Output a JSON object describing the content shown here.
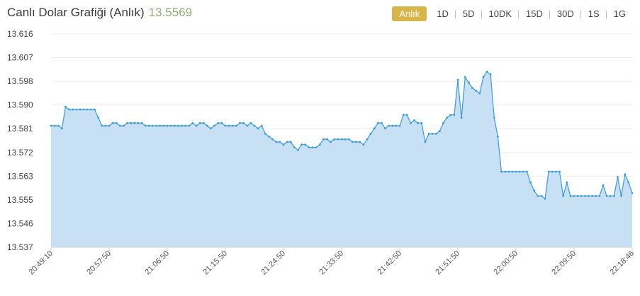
{
  "header": {
    "title": "Canlı Dolar Grafiği (Anlık)",
    "price": "13.5569"
  },
  "tabs": [
    {
      "label": "Anlık",
      "active": true
    },
    {
      "label": "1D",
      "active": false
    },
    {
      "label": "5D",
      "active": false
    },
    {
      "label": "10DK",
      "active": false
    },
    {
      "label": "15D",
      "active": false
    },
    {
      "label": "30D",
      "active": false
    },
    {
      "label": "1S",
      "active": false
    },
    {
      "label": "1G",
      "active": false
    }
  ],
  "colors": {
    "line": "#3a9ad9",
    "fill": "#c7e0f4",
    "active_tab": "#d8b54a",
    "price": "#8fae6d"
  },
  "chart_data": {
    "type": "area",
    "title": "",
    "xlabel": "",
    "ylabel": "",
    "ylim": [
      13.537,
      13.616
    ],
    "y_ticks": [
      "13.616",
      "13.607",
      "13.598",
      "13.590",
      "13.581",
      "13.572",
      "13.563",
      "13.555",
      "13.546",
      "13.537"
    ],
    "x_ticks": [
      "20:49:10",
      "20:57:50",
      "21:06:50",
      "21:15:50",
      "21:24:50",
      "21:33:50",
      "21:42:50",
      "21:51:50",
      "22:00:50",
      "22:09:50",
      "22:18:46"
    ],
    "grid": true,
    "series": [
      {
        "values": [
          13.582,
          13.582,
          13.582,
          13.581,
          13.589,
          13.588,
          13.588,
          13.588,
          13.588,
          13.588,
          13.588,
          13.588,
          13.588,
          13.585,
          13.582,
          13.582,
          13.582,
          13.583,
          13.583,
          13.582,
          13.582,
          13.583,
          13.583,
          13.583,
          13.583,
          13.583,
          13.582,
          13.582,
          13.582,
          13.582,
          13.582,
          13.582,
          13.582,
          13.582,
          13.582,
          13.582,
          13.582,
          13.582,
          13.582,
          13.583,
          13.582,
          13.583,
          13.583,
          13.582,
          13.581,
          13.582,
          13.583,
          13.583,
          13.582,
          13.582,
          13.582,
          13.582,
          13.583,
          13.583,
          13.582,
          13.583,
          13.582,
          13.581,
          13.582,
          13.579,
          13.578,
          13.577,
          13.576,
          13.576,
          13.575,
          13.576,
          13.576,
          13.574,
          13.573,
          13.575,
          13.575,
          13.574,
          13.574,
          13.574,
          13.575,
          13.577,
          13.577,
          13.576,
          13.577,
          13.577,
          13.577,
          13.577,
          13.577,
          13.576,
          13.576,
          13.576,
          13.575,
          13.577,
          13.579,
          13.581,
          13.583,
          13.583,
          13.581,
          13.582,
          13.582,
          13.582,
          13.582,
          13.586,
          13.586,
          13.583,
          13.584,
          13.583,
          13.583,
          13.576,
          13.579,
          13.579,
          13.579,
          13.58,
          13.583,
          13.585,
          13.586,
          13.586,
          13.599,
          13.585,
          13.6,
          13.598,
          13.596,
          13.595,
          13.594,
          13.6,
          13.602,
          13.601,
          13.585,
          13.578,
          13.565,
          13.565,
          13.565,
          13.565,
          13.565,
          13.565,
          13.565,
          13.565,
          13.561,
          13.558,
          13.556,
          13.556,
          13.555,
          13.565,
          13.565,
          13.565,
          13.565,
          13.556,
          13.561,
          13.556,
          13.556,
          13.556,
          13.556,
          13.556,
          13.556,
          13.556,
          13.556,
          13.556,
          13.56,
          13.556,
          13.556,
          13.556,
          13.563,
          13.556,
          13.564,
          13.561,
          13.557
        ]
      }
    ]
  }
}
